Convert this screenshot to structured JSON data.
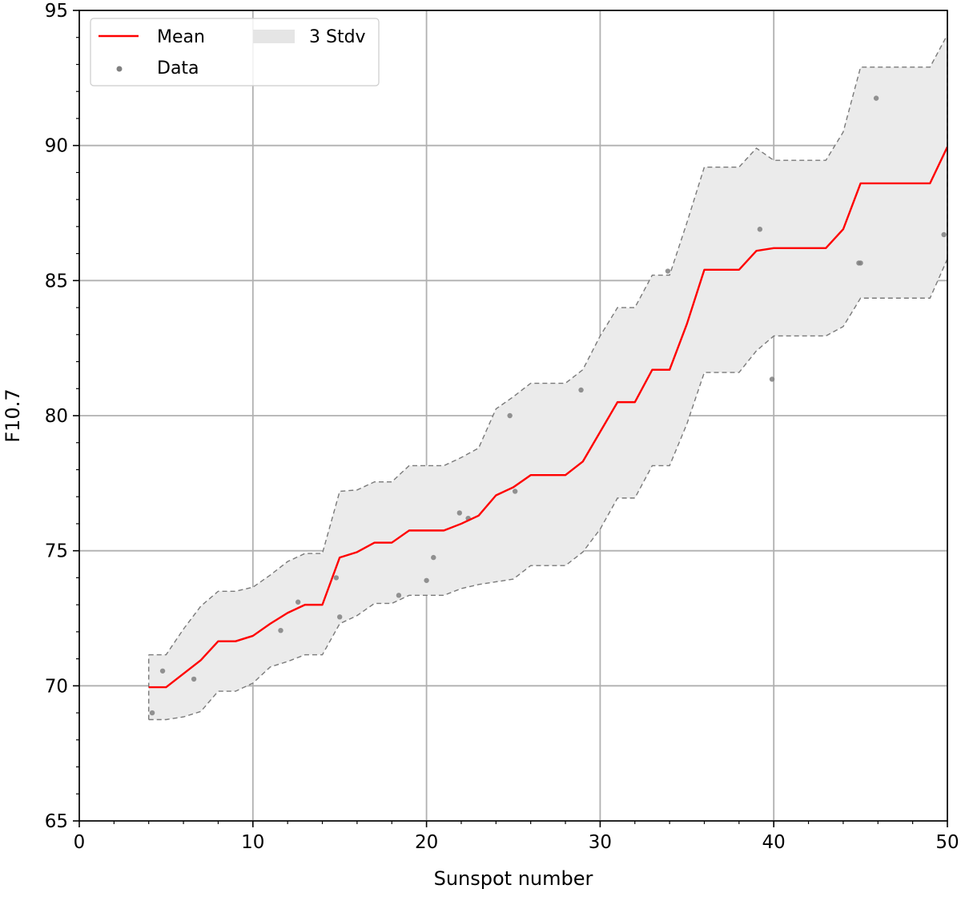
{
  "chart_data": {
    "type": "line",
    "xlabel": "Sunspot number",
    "ylabel": "F10.7",
    "xlim": [
      0,
      50
    ],
    "ylim": [
      65,
      95
    ],
    "xticks": [
      0,
      10,
      20,
      30,
      40,
      50
    ],
    "yticks": [
      65,
      70,
      75,
      80,
      85,
      90,
      95
    ],
    "grid": true,
    "legend_position": "top-left",
    "legend": [
      {
        "label": "Mean",
        "kind": "line",
        "color": "#ff0000"
      },
      {
        "label": "3 Stdv",
        "kind": "band",
        "color": "#e5e5e5"
      },
      {
        "label": "Data",
        "kind": "marker",
        "color": "#808080"
      }
    ],
    "mean": {
      "name": "Mean",
      "color": "#ff0000",
      "x": [
        4,
        5,
        6,
        7,
        8,
        9,
        10,
        11,
        12,
        13,
        14,
        15,
        16,
        17,
        18,
        19,
        20,
        21,
        22,
        23,
        24,
        25,
        26,
        27,
        28,
        29,
        30,
        31,
        32,
        33,
        34,
        35,
        36,
        37,
        38,
        39,
        40,
        41,
        42,
        43,
        44,
        45,
        46,
        47,
        48,
        49,
        50
      ],
      "y": [
        69.95,
        69.95,
        70.45,
        70.95,
        71.65,
        71.65,
        71.85,
        72.3,
        72.7,
        73.0,
        73.0,
        74.75,
        74.95,
        75.3,
        75.3,
        75.75,
        75.75,
        75.75,
        76.0,
        76.3,
        77.05,
        77.35,
        77.8,
        77.8,
        77.8,
        78.3,
        79.4,
        80.5,
        80.5,
        81.7,
        81.7,
        83.4,
        85.4,
        85.4,
        85.4,
        86.1,
        86.2,
        86.2,
        86.2,
        86.2,
        86.9,
        88.6,
        88.6,
        88.6,
        88.6,
        88.6,
        89.95
      ]
    },
    "band": {
      "name": "3 Stdv",
      "color": "#ebebeb",
      "x": [
        4,
        5,
        6,
        7,
        8,
        9,
        10,
        11,
        12,
        13,
        14,
        15,
        16,
        17,
        18,
        19,
        20,
        21,
        22,
        23,
        24,
        25,
        26,
        27,
        28,
        29,
        30,
        31,
        32,
        33,
        34,
        35,
        36,
        37,
        38,
        39,
        40,
        41,
        42,
        43,
        44,
        45,
        46,
        47,
        48,
        49,
        50
      ],
      "upper": [
        71.15,
        71.15,
        72.1,
        72.95,
        73.5,
        73.5,
        73.65,
        74.1,
        74.6,
        74.9,
        74.9,
        77.2,
        77.25,
        77.55,
        77.55,
        78.15,
        78.15,
        78.15,
        78.45,
        78.8,
        80.25,
        80.7,
        81.2,
        81.2,
        81.2,
        81.7,
        82.95,
        84.0,
        84.0,
        85.2,
        85.2,
        87.15,
        89.2,
        89.2,
        89.2,
        89.9,
        89.45,
        89.45,
        89.45,
        89.45,
        90.5,
        92.9,
        92.9,
        92.9,
        92.9,
        92.9,
        94.1
      ],
      "lower": [
        68.75,
        68.75,
        68.85,
        69.05,
        69.8,
        69.8,
        70.1,
        70.7,
        70.9,
        71.15,
        71.15,
        72.3,
        72.6,
        73.05,
        73.05,
        73.35,
        73.35,
        73.35,
        73.6,
        73.75,
        73.85,
        73.95,
        74.45,
        74.45,
        74.45,
        74.95,
        75.8,
        76.95,
        76.95,
        78.15,
        78.15,
        79.7,
        81.6,
        81.6,
        81.6,
        82.4,
        82.95,
        82.95,
        82.95,
        82.95,
        83.3,
        84.35,
        84.35,
        84.35,
        84.35,
        84.35,
        85.8
      ]
    },
    "data_points": {
      "name": "Data",
      "color": "#808080",
      "points": [
        [
          4.2,
          69.0
        ],
        [
          4.8,
          70.55
        ],
        [
          6.6,
          70.25
        ],
        [
          11.6,
          72.05
        ],
        [
          12.6,
          73.1
        ],
        [
          14.8,
          74.0
        ],
        [
          15.0,
          72.55
        ],
        [
          18.4,
          73.35
        ],
        [
          20.0,
          73.9
        ],
        [
          20.4,
          74.75
        ],
        [
          21.9,
          76.4
        ],
        [
          22.4,
          76.2
        ],
        [
          24.8,
          80.0
        ],
        [
          25.1,
          77.2
        ],
        [
          28.9,
          80.95
        ],
        [
          33.9,
          85.35
        ],
        [
          39.2,
          86.9
        ],
        [
          39.9,
          81.35
        ],
        [
          44.9,
          85.65
        ],
        [
          45.0,
          85.65
        ],
        [
          45.9,
          91.75
        ],
        [
          49.8,
          86.7
        ]
      ]
    }
  }
}
